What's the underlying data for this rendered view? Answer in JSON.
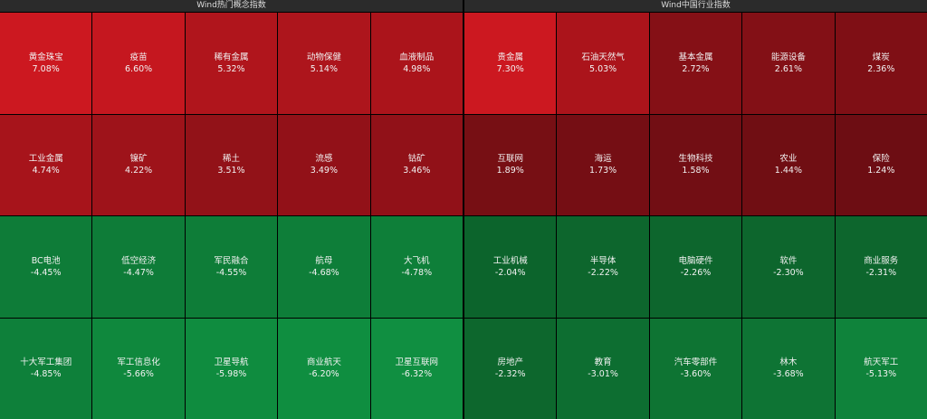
{
  "panels": [
    {
      "title": "Wind热门概念指数",
      "tiles": [
        {
          "name": "黄金珠宝",
          "change": "7.08%"
        },
        {
          "name": "疫苗",
          "change": "6.60%"
        },
        {
          "name": "稀有金属",
          "change": "5.32%"
        },
        {
          "name": "动物保健",
          "change": "5.14%"
        },
        {
          "name": "血液制品",
          "change": "4.98%"
        },
        {
          "name": "工业金属",
          "change": "4.74%"
        },
        {
          "name": "镍矿",
          "change": "4.22%"
        },
        {
          "name": "稀土",
          "change": "3.51%"
        },
        {
          "name": "流感",
          "change": "3.49%"
        },
        {
          "name": "钴矿",
          "change": "3.46%"
        },
        {
          "name": "BC电池",
          "change": "-4.45%"
        },
        {
          "name": "低空经济",
          "change": "-4.47%"
        },
        {
          "name": "军民融合",
          "change": "-4.55%"
        },
        {
          "name": "航母",
          "change": "-4.68%"
        },
        {
          "name": "大飞机",
          "change": "-4.78%"
        },
        {
          "name": "十大军工集团",
          "change": "-4.85%"
        },
        {
          "name": "军工信息化",
          "change": "-5.66%"
        },
        {
          "name": "卫星导航",
          "change": "-5.98%"
        },
        {
          "name": "商业航天",
          "change": "-6.20%"
        },
        {
          "name": "卫星互联网",
          "change": "-6.32%"
        }
      ]
    },
    {
      "title": "Wind中国行业指数",
      "tiles": [
        {
          "name": "贵金属",
          "change": "7.30%"
        },
        {
          "name": "石油天然气",
          "change": "5.03%"
        },
        {
          "name": "基本金属",
          "change": "2.72%"
        },
        {
          "name": "能源设备",
          "change": "2.61%"
        },
        {
          "name": "煤炭",
          "change": "2.36%"
        },
        {
          "name": "互联网",
          "change": "1.89%"
        },
        {
          "name": "海运",
          "change": "1.73%"
        },
        {
          "name": "生物科技",
          "change": "1.58%"
        },
        {
          "name": "农业",
          "change": "1.44%"
        },
        {
          "name": "保险",
          "change": "1.24%"
        },
        {
          "name": "工业机械",
          "change": "-2.04%"
        },
        {
          "name": "半导体",
          "change": "-2.22%"
        },
        {
          "name": "电脑硬件",
          "change": "-2.26%"
        },
        {
          "name": "软件",
          "change": "-2.30%"
        },
        {
          "name": "商业服务",
          "change": "-2.31%"
        },
        {
          "name": "房地产",
          "change": "-2.32%"
        },
        {
          "name": "教育",
          "change": "-3.01%"
        },
        {
          "name": "汽车零部件",
          "change": "-3.60%"
        },
        {
          "name": "林木",
          "change": "-3.68%"
        },
        {
          "name": "航天军工",
          "change": "-5.13%"
        }
      ]
    }
  ]
}
